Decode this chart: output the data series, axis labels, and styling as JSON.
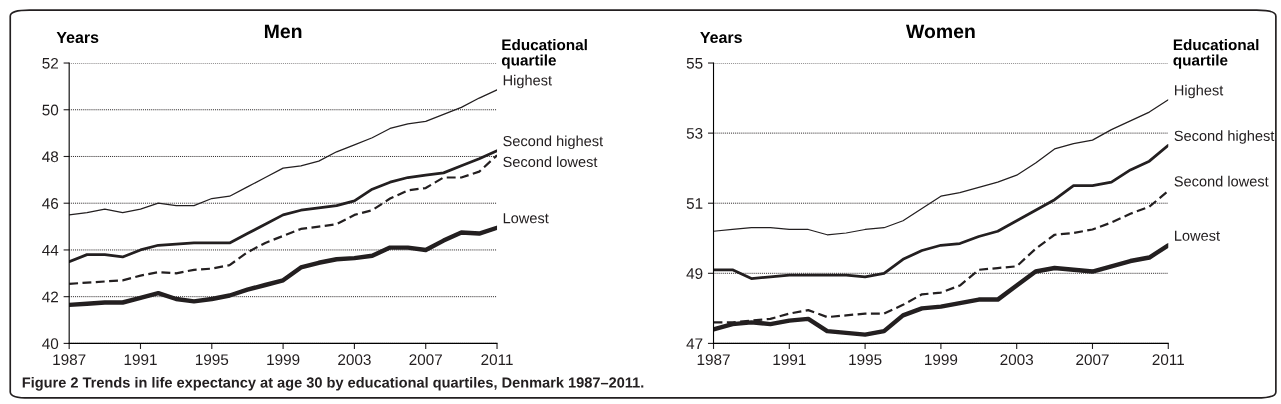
{
  "chart_data": [
    {
      "type": "line",
      "title": "Men",
      "ylabel": "Years",
      "legend_title": "Educational quartile",
      "legend": false,
      "grid": "y",
      "marker": "none",
      "x": [
        1987,
        1988,
        1989,
        1990,
        1991,
        1992,
        1993,
        1994,
        1995,
        1996,
        1997,
        1998,
        1999,
        2000,
        2001,
        2002,
        2003,
        2004,
        2005,
        2006,
        2007,
        2008,
        2009,
        2010,
        2011
      ],
      "xlim": [
        1987,
        2011
      ],
      "xticks": [
        1987,
        1991,
        1995,
        1999,
        2003,
        2007,
        2011
      ],
      "ylim": [
        40,
        52
      ],
      "yticks": [
        40,
        42,
        44,
        46,
        48,
        50,
        52
      ],
      "series": [
        {
          "name": "Highest",
          "color": "#231f20",
          "line_style": "solid",
          "values": [
            45.5,
            45.6,
            45.75,
            45.6,
            45.75,
            46.0,
            45.9,
            45.9,
            46.2,
            46.3,
            46.7,
            47.1,
            47.5,
            47.6,
            47.8,
            48.2,
            48.5,
            48.8,
            49.2,
            49.4,
            49.5,
            49.8,
            50.1,
            50.5,
            50.85
          ]
        },
        {
          "name": "Second highest",
          "color": "#231f20",
          "line_style": "solid",
          "values": [
            43.5,
            43.8,
            43.8,
            43.7,
            44.0,
            44.2,
            44.25,
            44.3,
            44.3,
            44.3,
            44.7,
            45.1,
            45.5,
            45.7,
            45.8,
            45.9,
            46.1,
            46.6,
            46.9,
            47.1,
            47.2,
            47.3,
            47.6,
            47.9,
            48.25
          ]
        },
        {
          "name": "Second lowest",
          "color": "#231f20",
          "line_style": "dashed",
          "values": [
            42.55,
            42.6,
            42.65,
            42.7,
            42.9,
            43.05,
            43.0,
            43.15,
            43.2,
            43.35,
            43.9,
            44.3,
            44.6,
            44.9,
            45.0,
            45.1,
            45.5,
            45.7,
            46.2,
            46.55,
            46.65,
            47.1,
            47.1,
            47.35,
            48.05
          ]
        },
        {
          "name": "Lowest",
          "color": "#231f20",
          "line_style": "solid",
          "values": [
            41.65,
            41.7,
            41.75,
            41.75,
            41.95,
            42.15,
            41.9,
            41.8,
            41.9,
            42.05,
            42.3,
            42.5,
            42.7,
            43.25,
            43.45,
            43.6,
            43.65,
            43.75,
            44.1,
            44.1,
            44.0,
            44.4,
            44.75,
            44.7,
            44.95
          ]
        }
      ],
      "annotations": [
        "Figure 2 Trends in life expectancy at age 30 by educational quartiles, Denmark 1987–2011."
      ]
    },
    {
      "type": "line",
      "title": "Women",
      "ylabel": "Years",
      "legend_title": "Educational quartile",
      "legend": false,
      "grid": "y",
      "marker": "none",
      "x": [
        1987,
        1988,
        1989,
        1990,
        1991,
        1992,
        1993,
        1994,
        1995,
        1996,
        1997,
        1998,
        1999,
        2000,
        2001,
        2002,
        2003,
        2004,
        2005,
        2006,
        2007,
        2008,
        2009,
        2010,
        2011
      ],
      "xlim": [
        1987,
        2011
      ],
      "xticks": [
        1987,
        1991,
        1995,
        1999,
        2003,
        2007,
        2011
      ],
      "ylim": [
        47,
        55
      ],
      "yticks": [
        47,
        49,
        51,
        53,
        55
      ],
      "series": [
        {
          "name": "Highest",
          "color": "#231f20",
          "line_style": "solid",
          "values": [
            50.2,
            50.25,
            50.3,
            50.3,
            50.25,
            50.25,
            50.1,
            50.15,
            50.25,
            50.3,
            50.5,
            50.85,
            51.2,
            51.3,
            51.45,
            51.6,
            51.8,
            52.15,
            52.55,
            52.7,
            52.8,
            53.1,
            53.35,
            53.6,
            53.95
          ]
        },
        {
          "name": "Second highest",
          "color": "#231f20",
          "line_style": "solid",
          "values": [
            49.1,
            49.1,
            48.85,
            48.9,
            48.95,
            48.95,
            48.95,
            48.95,
            48.9,
            49.0,
            49.4,
            49.65,
            49.8,
            49.85,
            50.05,
            50.2,
            50.5,
            50.8,
            51.1,
            51.5,
            51.5,
            51.6,
            51.95,
            52.2,
            52.65
          ]
        },
        {
          "name": "Second lowest",
          "color": "#231f20",
          "line_style": "dashed",
          "values": [
            47.6,
            47.6,
            47.65,
            47.7,
            47.85,
            47.95,
            47.75,
            47.8,
            47.85,
            47.85,
            48.1,
            48.4,
            48.45,
            48.65,
            49.1,
            49.15,
            49.2,
            49.7,
            50.1,
            50.15,
            50.25,
            50.45,
            50.7,
            50.9,
            51.35
          ]
        },
        {
          "name": "Lowest",
          "color": "#231f20",
          "line_style": "solid",
          "values": [
            47.4,
            47.55,
            47.6,
            47.55,
            47.65,
            47.7,
            47.35,
            47.3,
            47.25,
            47.35,
            47.8,
            48.0,
            48.05,
            48.15,
            48.25,
            48.25,
            48.65,
            49.05,
            49.15,
            49.1,
            49.05,
            49.2,
            49.35,
            49.45,
            49.8
          ]
        }
      ]
    }
  ]
}
